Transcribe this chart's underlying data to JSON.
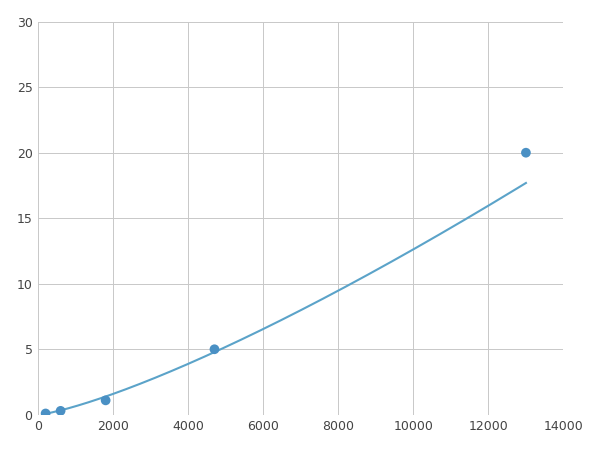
{
  "x_points": [
    200,
    600,
    1800,
    4700,
    13000
  ],
  "y_points": [
    0.1,
    0.3,
    1.1,
    5.0,
    20.0
  ],
  "line_color": "#5ba3c9",
  "marker_color": "#4a90c4",
  "marker_size": 7,
  "line_width": 1.5,
  "xlim": [
    0,
    14000
  ],
  "ylim": [
    0,
    30
  ],
  "xticks": [
    0,
    2000,
    4000,
    6000,
    8000,
    10000,
    12000,
    14000
  ],
  "yticks": [
    0,
    5,
    10,
    15,
    20,
    25,
    30
  ],
  "grid_color": "#c8c8c8",
  "background_color": "#ffffff",
  "spine_color": "#cccccc",
  "figsize": [
    6.0,
    4.5
  ],
  "dpi": 100
}
